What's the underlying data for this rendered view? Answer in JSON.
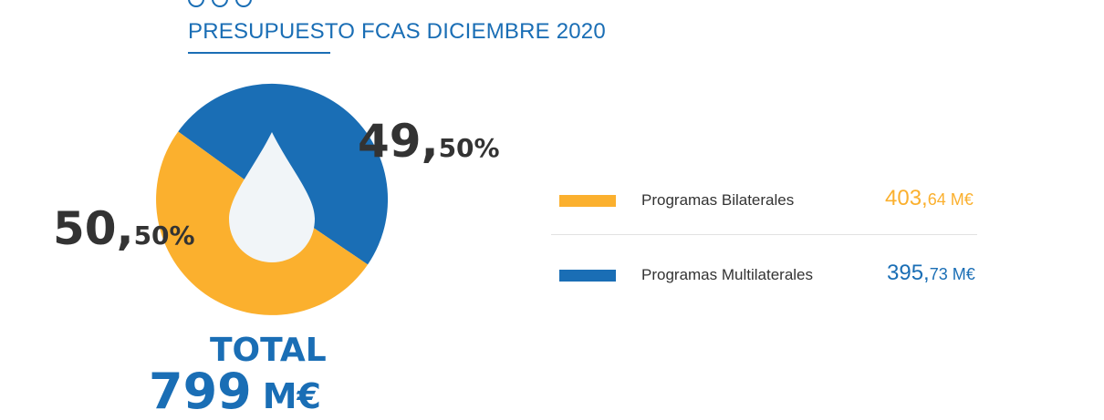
{
  "header": {
    "title": "PRESUPUESTO FCAS DICIEMBRE 2020"
  },
  "colors": {
    "brand_blue": "#1a6eb5",
    "bilateral_orange": "#fbb02e",
    "drop_fill": "#f1f5f8"
  },
  "icons": {
    "center": "water-drop-icon",
    "top": "circles-icon"
  },
  "chart_data": {
    "type": "pie",
    "categories": [
      "Programas Bilaterales",
      "Programas Multilaterales"
    ],
    "values": [
      50.5,
      49.5
    ],
    "colors": [
      "#fbb02e",
      "#1a6eb5"
    ],
    "slice_labels": [
      {
        "int": "50,",
        "dec": "50%"
      },
      {
        "int": "49,",
        "dec": "50%"
      }
    ]
  },
  "legend": [
    {
      "label": "Programas Bilaterales",
      "int": "403,",
      "dec": "64 M€",
      "color": "#fbb02e"
    },
    {
      "label": "Programas Multilaterales",
      "int": "395,",
      "dec": "73 M€",
      "color": "#1a6eb5"
    }
  ],
  "total": {
    "label": "TOTAL",
    "value": "799",
    "unit": "M€"
  }
}
